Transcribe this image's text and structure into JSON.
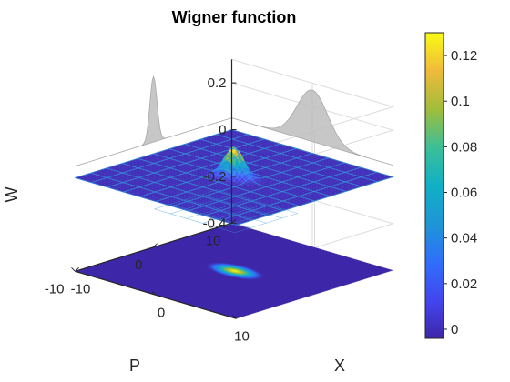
{
  "chart_data": {
    "type": "surface3d",
    "title": "Wigner function",
    "xlabel": "X",
    "ylabel": "P",
    "zlabel": "W",
    "x_ticks": [
      "-10",
      "0",
      "10"
    ],
    "y_ticks": [
      "-10",
      "0",
      "10"
    ],
    "z_ticks": [
      "-0.4",
      "-0.2",
      "0",
      "0.2"
    ],
    "x_tick_values": [
      -10,
      0,
      10
    ],
    "y_tick_values": [
      -10,
      0,
      10
    ],
    "z_tick_values": [
      -0.4,
      -0.2,
      0,
      0.2
    ],
    "xlim": [
      -10,
      10
    ],
    "ylim": [
      -10,
      10
    ],
    "zlim": [
      -0.4,
      0.3
    ],
    "grid": "on",
    "colormap": "parula",
    "colorbar": {
      "location": "right",
      "ticks": [
        "0",
        "0.02",
        "0.04",
        "0.06",
        "0.08",
        "0.1",
        "0.12"
      ],
      "tick_values": [
        0,
        0.02,
        0.04,
        0.06,
        0.08,
        0.1,
        0.12
      ],
      "range": [
        -0.004,
        0.13
      ]
    },
    "function": {
      "shape": "squeezed gaussian",
      "peak_W": 0.13,
      "center_X": 0,
      "center_P": 0,
      "surface_grid_X": [
        -10,
        -8,
        -6,
        -4,
        -2,
        0,
        2,
        4,
        6,
        8,
        10
      ],
      "surface_grid_P": [
        -10,
        -8,
        -6,
        -4,
        -2,
        0,
        2,
        4,
        6,
        8,
        10
      ]
    },
    "marginal_projections": [
      "X",
      "P"
    ],
    "contour_plane_W": -0.4
  },
  "colors": {
    "background": "#ffffff",
    "surface_low": "#3e26a8",
    "surface_peak": "#f9fb15",
    "mesh_line": "#2f9bde",
    "projection": "#bdbdbd",
    "axis": "#262626"
  }
}
